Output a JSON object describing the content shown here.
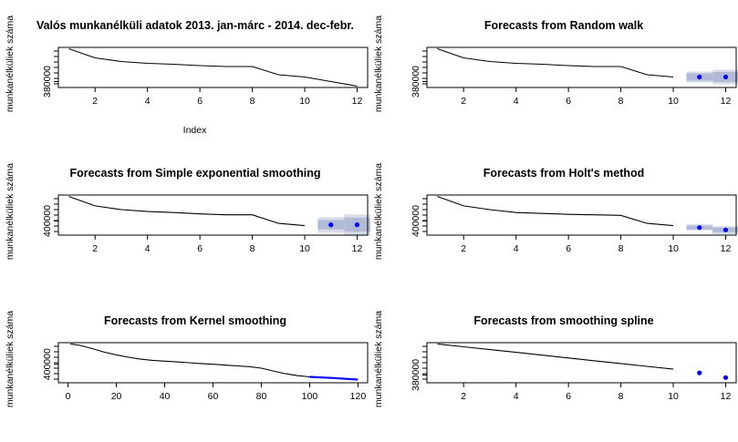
{
  "chart_data": [
    {
      "type": "line",
      "title": "Valós munkanélküli adatok 2013. jan-márc - 2014. dec-febr.",
      "ylabel": "munkanélküliek száma",
      "xlabel": "Index",
      "x": [
        1,
        2,
        3,
        4,
        5,
        6,
        7,
        8,
        9,
        10,
        11,
        12
      ],
      "values": [
        452000,
        432000,
        424000,
        420000,
        418000,
        415000,
        413000,
        413000,
        395000,
        390000,
        380000,
        370000
      ],
      "xlim": [
        0.6,
        12.4
      ],
      "ylim": [
        367000,
        455000
      ],
      "xticks": [
        2,
        4,
        6,
        8,
        10,
        12
      ],
      "yticks": [
        380000
      ],
      "xtick_labels": [
        "2",
        "4",
        "6",
        "8",
        "10",
        "12"
      ],
      "ytick_labels": [
        "380000"
      ],
      "forecast": null
    },
    {
      "type": "line",
      "title": "Forecasts from Random walk",
      "ylabel": "munkanélküliek száma",
      "xlabel": "",
      "x": [
        1,
        2,
        3,
        4,
        5,
        6,
        7,
        8,
        9,
        10
      ],
      "values": [
        452000,
        432000,
        424000,
        420000,
        418000,
        415000,
        413000,
        413000,
        395000,
        390000
      ],
      "xlim": [
        0.6,
        12.4
      ],
      "ylim": [
        367000,
        455000
      ],
      "xticks": [
        2,
        4,
        6,
        8,
        10,
        12
      ],
      "yticks": [
        380000
      ],
      "xtick_labels": [
        "2",
        "4",
        "6",
        "8",
        "10",
        "12"
      ],
      "ytick_labels": [
        "380000"
      ],
      "forecast": {
        "x": [
          11,
          12
        ],
        "mean": [
          390000,
          390000
        ],
        "lo80": [
          382000,
          379000
        ],
        "hi80": [
          398000,
          401000
        ],
        "lo95": [
          378000,
          374000
        ],
        "hi95": [
          402000,
          406000
        ]
      }
    },
    {
      "type": "line",
      "title": "Forecasts from Simple exponential smoothing",
      "ylabel": "munkanélküliek száma",
      "xlabel": "",
      "x": [
        1,
        2,
        3,
        4,
        5,
        6,
        7,
        8,
        9,
        10
      ],
      "values": [
        452000,
        432000,
        424000,
        420000,
        418000,
        415000,
        413000,
        413000,
        395000,
        390000
      ],
      "xlim": [
        0.6,
        12.4
      ],
      "ylim": [
        370000,
        455000
      ],
      "xticks": [
        2,
        4,
        6,
        8,
        10,
        12
      ],
      "yticks": [
        400000
      ],
      "xtick_labels": [
        "2",
        "4",
        "6",
        "8",
        "10",
        "12"
      ],
      "ytick_labels": [
        "400000"
      ],
      "forecast": {
        "x": [
          11,
          12
        ],
        "mean": [
          392000,
          392000
        ],
        "lo80": [
          382000,
          377000
        ],
        "hi80": [
          402000,
          407000
        ],
        "lo95": [
          375000,
          369000
        ],
        "hi95": [
          408000,
          414000
        ]
      }
    },
    {
      "type": "line",
      "title": "Forecasts from Holt's method",
      "ylabel": "munkanélküliek száma",
      "xlabel": "",
      "x": [
        1,
        2,
        3,
        4,
        5,
        6,
        7,
        8,
        9,
        10
      ],
      "values": [
        452000,
        432000,
        424000,
        418000,
        416000,
        414000,
        413000,
        412000,
        395000,
        390000
      ],
      "xlim": [
        0.6,
        12.4
      ],
      "ylim": [
        370000,
        455000
      ],
      "xticks": [
        2,
        4,
        6,
        8,
        10,
        12
      ],
      "yticks": [
        400000
      ],
      "xtick_labels": [
        "2",
        "4",
        "6",
        "8",
        "10",
        "12"
      ],
      "ytick_labels": [
        "400000"
      ],
      "forecast": {
        "x": [
          11,
          12
        ],
        "mean": [
          386000,
          381000
        ],
        "lo80": [
          382000,
          376000
        ],
        "hi80": [
          390000,
          386000
        ],
        "lo95": [
          380000,
          372000
        ],
        "hi95": [
          393000,
          389000
        ]
      }
    },
    {
      "type": "line",
      "title": "Forecasts from Kernel smoothing",
      "ylabel": "munkanélküliek száma",
      "xlabel": "",
      "x": [
        1,
        5,
        10,
        15,
        20,
        25,
        30,
        35,
        40,
        45,
        50,
        55,
        60,
        65,
        70,
        75,
        80,
        85,
        90,
        95,
        100
      ],
      "values": [
        452000,
        448000,
        440000,
        431000,
        424000,
        418000,
        413000,
        410000,
        408000,
        406000,
        404000,
        402000,
        400000,
        398000,
        396000,
        394000,
        390000,
        383000,
        376000,
        371000,
        368000
      ],
      "xlim": [
        -4,
        124
      ],
      "ylim": [
        353000,
        455000
      ],
      "xticks": [
        0,
        20,
        40,
        60,
        80,
        100,
        120
      ],
      "yticks": [
        400000
      ],
      "xtick_labels": [
        "0",
        "20",
        "40",
        "60",
        "80",
        "100",
        "120"
      ],
      "ytick_labels": [
        "400000"
      ],
      "forecast": {
        "x": [
          100,
          105,
          110,
          115,
          120
        ],
        "mean": [
          368000,
          366500,
          365000,
          363000,
          361000
        ],
        "lo80": null,
        "hi80": null,
        "lo95": null,
        "hi95": null
      }
    },
    {
      "type": "line",
      "title": "Forecasts from smoothing spline",
      "ylabel": "munkanélküliek száma",
      "xlabel": "",
      "x": [
        1,
        2,
        3,
        4,
        5,
        6,
        7,
        8,
        9,
        10
      ],
      "values": [
        452000,
        445500,
        439000,
        432500,
        426000,
        419500,
        413000,
        406500,
        400000,
        393500
      ],
      "xlim": [
        0.6,
        12.4
      ],
      "ylim": [
        362000,
        455000
      ],
      "xticks": [
        2,
        4,
        6,
        8,
        10,
        12
      ],
      "yticks": [
        380000
      ],
      "xtick_labels": [
        "2",
        "4",
        "6",
        "8",
        "10",
        "12"
      ],
      "ytick_labels": [
        "380000"
      ],
      "forecast": {
        "x": [
          11,
          12
        ],
        "mean": [
          385000,
          374000
        ],
        "lo80": null,
        "hi80": null,
        "lo95": null,
        "hi95": null
      }
    }
  ]
}
